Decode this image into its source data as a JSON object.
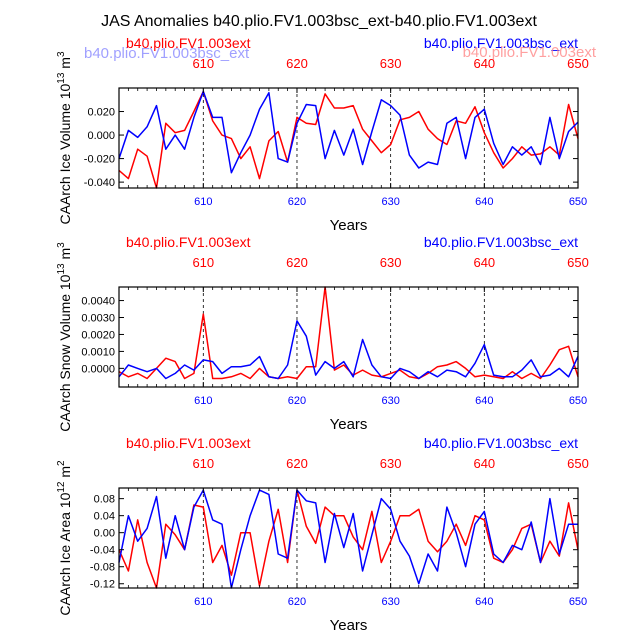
{
  "figure_title": "JAS Anomalies b40.plio.FV1.003bsc_ext-b40.plio.FV1.003ext",
  "ghost_labels": {
    "left": "b40.plio.FV1.003bsc_ext",
    "right": "b40.plio.FV1.003ext"
  },
  "colors": {
    "series_a": "#ff0000",
    "series_b": "#0000ff",
    "ghost_left": "#8080ff",
    "ghost_right": "#ff8080"
  },
  "chart_data": [
    {
      "type": "line",
      "name": "ice-volume",
      "ylabel": "CAArch Ice Volume 10",
      "ylabel_exp": "13",
      "ylabel_unit": "m",
      "ylabel_unit_exp": "3",
      "xlabel": "Years",
      "xlim": [
        601,
        650
      ],
      "ylim": [
        -0.045,
        0.04
      ],
      "yticks": [
        -0.04,
        -0.02,
        0.0,
        0.02
      ],
      "ytick_labels": [
        "-0.040",
        "-0.020",
        "0.000",
        "0.020"
      ],
      "xticks": [
        610,
        620,
        630,
        640,
        650
      ],
      "xtick_labels": [
        "610",
        "620",
        "630",
        "640",
        "650"
      ],
      "vlines": [
        610,
        620,
        630,
        640
      ],
      "x": [
        601,
        602,
        603,
        604,
        605,
        606,
        607,
        608,
        609,
        610,
        611,
        612,
        613,
        614,
        615,
        616,
        617,
        618,
        619,
        620,
        621,
        622,
        623,
        624,
        625,
        626,
        627,
        628,
        629,
        630,
        631,
        632,
        633,
        634,
        635,
        636,
        637,
        638,
        639,
        640,
        641,
        642,
        643,
        644,
        645,
        646,
        647,
        648,
        649,
        650
      ],
      "legend": [
        "b40.plio.FV1.003ext",
        "b40.plio.FV1.003bsc_ext"
      ],
      "series": [
        {
          "name": "b40.plio.FV1.003ext",
          "color": "#ff0000",
          "values": [
            -0.03,
            -0.037,
            -0.012,
            -0.018,
            -0.045,
            0.01,
            0.002,
            0.004,
            0.02,
            0.037,
            0.012,
            0.0,
            -0.003,
            -0.02,
            -0.01,
            -0.037,
            -0.005,
            0.003,
            -0.023,
            0.015,
            0.01,
            0.009,
            0.035,
            0.023,
            0.023,
            0.025,
            0.005,
            -0.005,
            -0.015,
            -0.008,
            0.013,
            0.015,
            0.02,
            0.005,
            -0.003,
            -0.008,
            0.012,
            0.01,
            0.024,
            0.002,
            -0.015,
            -0.028,
            -0.02,
            -0.01,
            -0.017,
            -0.016,
            -0.01,
            -0.017,
            0.026,
            -0.003
          ]
        },
        {
          "name": "b40.plio.FV1.003bsc_ext",
          "color": "#0000ff",
          "values": [
            -0.02,
            0.004,
            -0.002,
            0.007,
            0.025,
            -0.012,
            0.0,
            -0.012,
            0.015,
            0.037,
            0.015,
            0.015,
            -0.032,
            -0.015,
            0.0,
            0.022,
            0.036,
            -0.02,
            -0.023,
            0.01,
            0.026,
            0.025,
            -0.02,
            0.004,
            -0.017,
            0.005,
            -0.025,
            0.003,
            0.03,
            0.025,
            0.017,
            -0.017,
            -0.028,
            -0.023,
            -0.025,
            0.01,
            0.015,
            -0.02,
            0.015,
            0.022,
            -0.007,
            -0.025,
            -0.01,
            -0.017,
            -0.01,
            -0.025,
            0.015,
            -0.02,
            0.003,
            0.011
          ]
        }
      ]
    },
    {
      "type": "line",
      "name": "snow-volume",
      "ylabel": "CAArch Snow Volume 10",
      "ylabel_exp": "13",
      "ylabel_unit": "m",
      "ylabel_unit_exp": "3",
      "xlabel": "Years",
      "xlim": [
        601,
        650
      ],
      "ylim": [
        -0.0011,
        0.0048
      ],
      "yticks": [
        0.0,
        0.001,
        0.002,
        0.003,
        0.004
      ],
      "ytick_labels": [
        "0.0000",
        "0.0010",
        "0.0020",
        "0.0030",
        "0.0040"
      ],
      "xticks": [
        610,
        620,
        630,
        640,
        650
      ],
      "xtick_labels": [
        "610",
        "620",
        "630",
        "640",
        "650"
      ],
      "vlines": [
        610,
        620,
        630,
        640
      ],
      "x": [
        601,
        602,
        603,
        604,
        605,
        606,
        607,
        608,
        609,
        610,
        611,
        612,
        613,
        614,
        615,
        616,
        617,
        618,
        619,
        620,
        621,
        622,
        623,
        624,
        625,
        626,
        627,
        628,
        629,
        630,
        631,
        632,
        633,
        634,
        635,
        636,
        637,
        638,
        639,
        640,
        641,
        642,
        643,
        644,
        645,
        646,
        647,
        648,
        649,
        650
      ],
      "legend": [
        "b40.plio.FV1.003ext",
        "b40.plio.FV1.003bsc_ext"
      ],
      "series": [
        {
          "name": "b40.plio.FV1.003ext",
          "color": "#ff0000",
          "values": [
            -0.0002,
            -0.0005,
            -0.0003,
            -0.0006,
            0.0,
            0.0006,
            0.0004,
            -0.0006,
            -0.0003,
            0.0032,
            -0.0006,
            -0.0006,
            -0.0005,
            -0.0003,
            -0.0006,
            0.0,
            -0.0005,
            -0.0006,
            -0.0005,
            -0.0006,
            0.0001,
            0.0001,
            0.0048,
            -0.0001,
            0.0002,
            -0.0004,
            -0.0001,
            -0.0004,
            -0.0005,
            -0.0003,
            -0.0001,
            -0.0005,
            -0.0006,
            -0.0003,
            0.0001,
            0.0002,
            0.0004,
            0.0,
            -0.0005,
            -0.0004,
            -0.0005,
            -0.0006,
            -0.0002,
            -0.0006,
            -0.0003,
            -0.0006,
            0.0002,
            0.0011,
            0.0013,
            -0.0005
          ]
        },
        {
          "name": "b40.plio.FV1.003bsc_ext",
          "color": "#0000ff",
          "values": [
            -0.0005,
            0.0002,
            0.0,
            -0.0002,
            0.0,
            -0.0006,
            -0.0003,
            0.0002,
            -0.0001,
            0.0005,
            0.0004,
            -0.0003,
            0.0001,
            0.0001,
            0.0002,
            0.0007,
            -0.0005,
            -0.0006,
            0.0002,
            0.0028,
            0.0019,
            -0.0004,
            0.0004,
            0.0,
            0.0004,
            -0.0005,
            0.0017,
            0.0002,
            -0.0005,
            -0.0006,
            0.0,
            -0.0002,
            -0.0006,
            -0.0002,
            -0.0005,
            -0.0001,
            -0.0002,
            -0.0005,
            0.0003,
            0.0014,
            -0.0004,
            -0.0005,
            -0.0005,
            -0.0001,
            0.0005,
            -0.0005,
            -0.0004,
            0.0,
            -0.0005,
            0.0007
          ]
        }
      ]
    },
    {
      "type": "line",
      "name": "ice-area",
      "ylabel": "CAArch Ice Area 10",
      "ylabel_exp": "12",
      "ylabel_unit": "m",
      "ylabel_unit_exp": "2",
      "xlabel": "Years",
      "xlim": [
        601,
        650
      ],
      "ylim": [
        -0.13,
        0.105
      ],
      "yticks": [
        -0.12,
        -0.08,
        -0.04,
        0.0,
        0.04,
        0.08
      ],
      "ytick_labels": [
        "-0.12",
        "-0.08",
        "-0.04",
        "0.00",
        "0.04",
        "0.08"
      ],
      "xticks": [
        610,
        620,
        630,
        640,
        650
      ],
      "xtick_labels": [
        "610",
        "620",
        "630",
        "640",
        "650"
      ],
      "vlines": [
        610,
        620,
        630,
        640
      ],
      "x": [
        601,
        602,
        603,
        604,
        605,
        606,
        607,
        608,
        609,
        610,
        611,
        612,
        613,
        614,
        615,
        616,
        617,
        618,
        619,
        620,
        621,
        622,
        623,
        624,
        625,
        626,
        627,
        628,
        629,
        630,
        631,
        632,
        633,
        634,
        635,
        636,
        637,
        638,
        639,
        640,
        641,
        642,
        643,
        644,
        645,
        646,
        647,
        648,
        649,
        650
      ],
      "legend": [
        "b40.plio.FV1.003ext",
        "b40.plio.FV1.003bsc_ext"
      ],
      "series": [
        {
          "name": "b40.plio.FV1.003ext",
          "color": "#ff0000",
          "values": [
            -0.04,
            -0.09,
            0.03,
            -0.07,
            -0.13,
            0.02,
            -0.005,
            -0.04,
            0.065,
            0.06,
            -0.07,
            -0.03,
            -0.1,
            0.0,
            0.0,
            -0.125,
            -0.02,
            0.055,
            -0.07,
            0.1,
            0.015,
            -0.025,
            0.06,
            0.04,
            0.04,
            -0.01,
            -0.04,
            0.05,
            -0.07,
            -0.02,
            0.04,
            0.04,
            0.055,
            -0.02,
            -0.045,
            -0.02,
            0.02,
            -0.03,
            0.04,
            0.03,
            -0.06,
            -0.07,
            -0.04,
            0.01,
            0.02,
            -0.07,
            -0.02,
            -0.055,
            0.07,
            -0.04
          ]
        },
        {
          "name": "b40.plio.FV1.003bsc_ext",
          "color": "#0000ff",
          "values": [
            -0.07,
            0.04,
            -0.02,
            0.01,
            0.085,
            -0.06,
            0.04,
            -0.04,
            0.06,
            0.1,
            0.03,
            0.02,
            -0.13,
            -0.04,
            0.04,
            0.1,
            0.09,
            -0.05,
            -0.06,
            0.1,
            0.075,
            0.07,
            -0.07,
            0.045,
            -0.035,
            0.045,
            -0.09,
            -0.005,
            0.08,
            0.055,
            -0.02,
            -0.055,
            -0.12,
            -0.05,
            -0.09,
            0.06,
            0.0,
            -0.08,
            0.02,
            0.05,
            -0.05,
            -0.07,
            -0.03,
            -0.04,
            0.025,
            -0.07,
            0.08,
            -0.05,
            0.02,
            0.02
          ]
        }
      ]
    }
  ]
}
